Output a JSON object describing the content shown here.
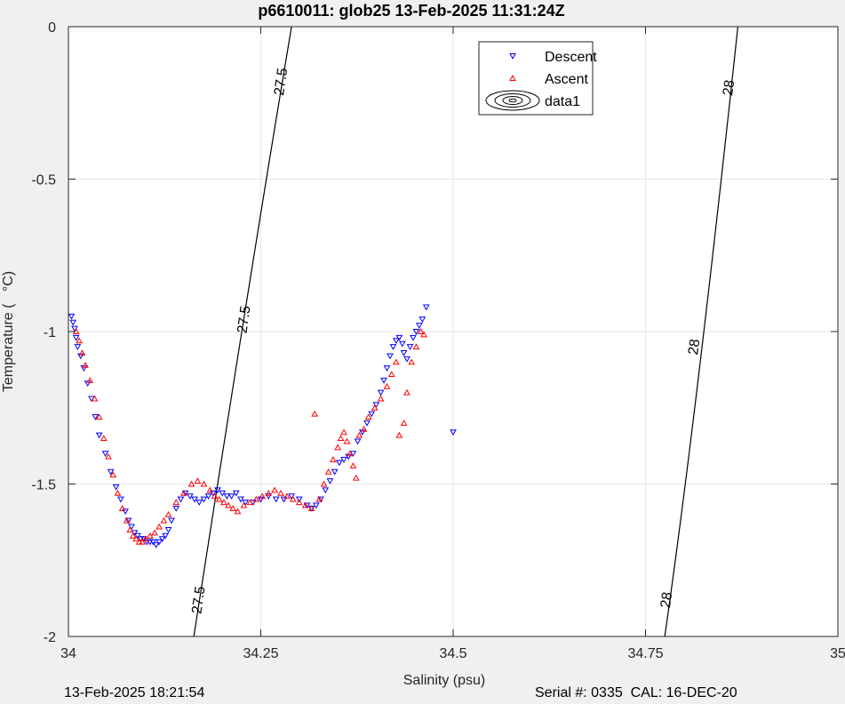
{
  "chart_data": {
    "type": "scatter",
    "title": "p6610011: glob25 13-Feb-2025 11:31:24Z",
    "xlabel": "Salinity (psu)",
    "ylabel": "Temperature (   °C)",
    "xlim": [
      34,
      35
    ],
    "ylim": [
      -2,
      0
    ],
    "xticks": [
      34,
      34.25,
      34.5,
      34.75,
      35
    ],
    "xtick_labels": [
      "34",
      "34.25",
      "34.5",
      "34.75",
      "35"
    ],
    "yticks": [
      0,
      -0.5,
      -1,
      -1.5,
      -2
    ],
    "ytick_labels": [
      "0",
      "-0.5",
      "-1",
      "-1.5",
      "-2"
    ],
    "grid": true,
    "legend_position": "top-right",
    "legend": [
      {
        "label": "Descent",
        "marker": "triangle-down",
        "color": "#0000ff"
      },
      {
        "label": "Ascent",
        "marker": "triangle-up",
        "color": "#ff0000"
      },
      {
        "label": "data1",
        "marker": "contour-ellipses",
        "color": "#000000"
      }
    ],
    "series": [
      {
        "name": "Descent",
        "color": "#0000ff",
        "marker": "triangle-down",
        "x": [
          34.004,
          34.006,
          34.008,
          34.01,
          34.012,
          34.016,
          34.02,
          34.025,
          34.03,
          34.035,
          34.04,
          34.048,
          34.055,
          34.062,
          34.068,
          34.074,
          34.078,
          34.082,
          34.086,
          34.09,
          34.094,
          34.098,
          34.102,
          34.106,
          34.11,
          34.114,
          34.118,
          34.122,
          34.126,
          34.13,
          34.134,
          34.14,
          34.146,
          34.152,
          34.158,
          34.164,
          34.17,
          34.176,
          34.182,
          34.188,
          34.194,
          34.2,
          34.206,
          34.212,
          34.218,
          34.224,
          34.23,
          34.24,
          34.25,
          34.26,
          34.27,
          34.28,
          34.29,
          34.3,
          34.31,
          34.316,
          34.322,
          34.328,
          34.334,
          34.34,
          34.346,
          34.352,
          34.358,
          34.364,
          34.37,
          34.376,
          34.382,
          34.388,
          34.394,
          34.4,
          34.406,
          34.41,
          34.414,
          34.418,
          34.422,
          34.426,
          34.43,
          34.434,
          34.436,
          34.44,
          34.444,
          34.448,
          34.452,
          34.456,
          34.46,
          34.465,
          34.5
        ],
        "y": [
          -0.95,
          -0.97,
          -0.99,
          -1.02,
          -1.05,
          -1.08,
          -1.12,
          -1.17,
          -1.22,
          -1.28,
          -1.34,
          -1.4,
          -1.46,
          -1.51,
          -1.55,
          -1.59,
          -1.62,
          -1.64,
          -1.66,
          -1.67,
          -1.68,
          -1.68,
          -1.69,
          -1.69,
          -1.69,
          -1.7,
          -1.69,
          -1.68,
          -1.67,
          -1.65,
          -1.62,
          -1.58,
          -1.55,
          -1.53,
          -1.54,
          -1.55,
          -1.56,
          -1.55,
          -1.54,
          -1.53,
          -1.52,
          -1.53,
          -1.54,
          -1.54,
          -1.53,
          -1.55,
          -1.56,
          -1.56,
          -1.55,
          -1.54,
          -1.55,
          -1.55,
          -1.54,
          -1.55,
          -1.57,
          -1.58,
          -1.57,
          -1.55,
          -1.52,
          -1.49,
          -1.46,
          -1.43,
          -1.42,
          -1.41,
          -1.4,
          -1.36,
          -1.33,
          -1.3,
          -1.27,
          -1.24,
          -1.2,
          -1.16,
          -1.12,
          -1.08,
          -1.05,
          -1.03,
          -1.02,
          -1.04,
          -1.07,
          -1.09,
          -1.05,
          -1.02,
          -1.0,
          -0.98,
          -0.96,
          -0.92,
          -1.33
        ]
      },
      {
        "name": "Ascent",
        "color": "#ff0000",
        "marker": "triangle-up",
        "x": [
          34.01,
          34.014,
          34.018,
          34.022,
          34.028,
          34.034,
          34.04,
          34.046,
          34.052,
          34.058,
          34.064,
          34.07,
          34.076,
          34.08,
          34.084,
          34.088,
          34.092,
          34.096,
          34.1,
          34.106,
          34.112,
          34.118,
          34.124,
          34.13,
          34.14,
          34.15,
          34.16,
          34.168,
          34.176,
          34.184,
          34.19,
          34.196,
          34.202,
          34.208,
          34.214,
          34.22,
          34.228,
          34.236,
          34.244,
          34.252,
          34.26,
          34.268,
          34.276,
          34.284,
          34.292,
          34.3,
          34.308,
          34.316,
          34.32,
          34.326,
          34.332,
          34.338,
          34.344,
          34.35,
          34.354,
          34.358,
          34.362,
          34.366,
          34.37,
          34.374,
          34.378,
          34.384,
          34.39,
          34.398,
          34.406,
          34.414,
          34.42,
          34.426,
          34.43,
          34.436,
          34.44,
          34.446,
          34.452,
          34.458,
          34.462
        ],
        "y": [
          -1.0,
          -1.03,
          -1.07,
          -1.11,
          -1.16,
          -1.22,
          -1.28,
          -1.35,
          -1.41,
          -1.47,
          -1.53,
          -1.58,
          -1.62,
          -1.65,
          -1.67,
          -1.68,
          -1.69,
          -1.69,
          -1.68,
          -1.67,
          -1.66,
          -1.64,
          -1.62,
          -1.6,
          -1.56,
          -1.53,
          -1.5,
          -1.49,
          -1.5,
          -1.52,
          -1.54,
          -1.55,
          -1.56,
          -1.57,
          -1.58,
          -1.59,
          -1.57,
          -1.56,
          -1.55,
          -1.54,
          -1.53,
          -1.52,
          -1.53,
          -1.54,
          -1.55,
          -1.56,
          -1.57,
          -1.58,
          -1.27,
          -1.55,
          -1.5,
          -1.46,
          -1.42,
          -1.38,
          -1.35,
          -1.33,
          -1.36,
          -1.4,
          -1.44,
          -1.48,
          -1.34,
          -1.32,
          -1.28,
          -1.25,
          -1.22,
          -1.18,
          -1.14,
          -1.1,
          -1.34,
          -1.3,
          -1.2,
          -1.1,
          -1.05,
          -1.0,
          -1.01
        ]
      }
    ],
    "contours": [
      {
        "label": "27.5",
        "points": [
          [
            34.163,
            -2.0
          ],
          [
            34.24,
            -0.75
          ],
          [
            34.29,
            0.0
          ]
        ]
      },
      {
        "label": "28",
        "points": [
          [
            34.775,
            -2.0
          ],
          [
            34.815,
            -1.3
          ],
          [
            34.87,
            0.0
          ]
        ]
      }
    ],
    "contour_labels": [
      {
        "text": "27.5",
        "x": 34.227,
        "y": -0.96
      },
      {
        "text": "27.5",
        "x": 34.275,
        "y": -0.18
      },
      {
        "text": "27.5",
        "x": 34.168,
        "y": -1.88
      },
      {
        "text": "28",
        "x": 34.812,
        "y": -1.05
      },
      {
        "text": "28",
        "x": 34.857,
        "y": -0.2
      },
      {
        "text": "28",
        "x": 34.776,
        "y": -1.88
      }
    ]
  },
  "footer": {
    "left": "13-Feb-2025 18:21:54",
    "right": "Serial #: 0335  CAL: 16-DEC-20"
  }
}
